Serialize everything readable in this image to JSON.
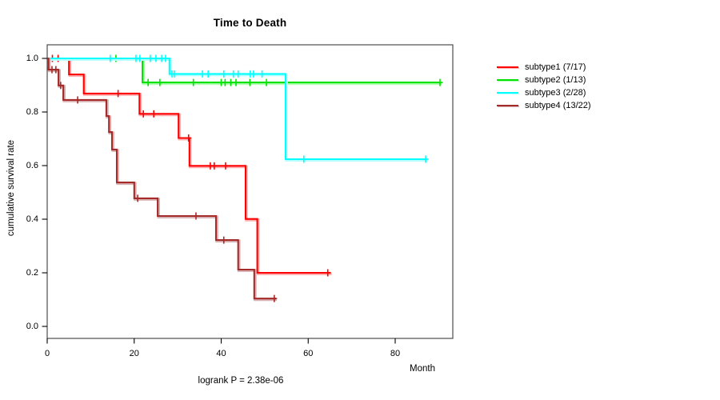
{
  "title": "Time to Death",
  "caption": "logrank P = 2.38e-06",
  "chart_data": {
    "type": "line",
    "chart_style": "kaplan-meier-step-survival",
    "title": "Time to Death",
    "xlabel": "Month",
    "ylabel": "cumulative survival rate",
    "xlim": [
      0,
      93
    ],
    "ylim": [
      0,
      1.0
    ],
    "grid": false,
    "legend_position": "right-outside",
    "x_ticks": [
      0,
      20,
      40,
      60,
      80
    ],
    "x_tick_labels": [
      "0",
      "20",
      "40",
      "60",
      "80"
    ],
    "y_ticks": [
      0.0,
      0.2,
      0.4,
      0.6,
      0.8,
      1.0
    ],
    "y_tick_labels": [
      "0.0",
      "0.2",
      "0.4",
      "0.6",
      "0.8",
      "1.0"
    ],
    "annotation": "logrank P = 2.38e-06",
    "series": [
      {
        "name": "subtype1 (7/17)",
        "color": "#ff0000",
        "halo": "#ffb0b0",
        "steps": [
          [
            0,
            1.0
          ],
          [
            5.0,
            0.94
          ],
          [
            8.4,
            0.869
          ],
          [
            21.2,
            0.793
          ],
          [
            30.2,
            0.703
          ],
          [
            32.7,
            0.599
          ],
          [
            45.6,
            0.401
          ],
          [
            48.3,
            0.2
          ]
        ],
        "end_month": 65.2,
        "censors": [
          [
            1.2,
            1.0
          ],
          [
            2.5,
            1.0
          ],
          [
            16.3,
            0.869
          ],
          [
            22.1,
            0.793
          ],
          [
            24.5,
            0.793
          ],
          [
            32.5,
            0.703
          ],
          [
            37.5,
            0.599
          ],
          [
            38.4,
            0.599
          ],
          [
            41.0,
            0.599
          ],
          [
            64.5,
            0.2
          ]
        ]
      },
      {
        "name": "subtype2 (1/13)",
        "color": "#00e100",
        "halo": "#b0ffb0",
        "steps": [
          [
            0,
            1.0
          ],
          [
            21.9,
            0.91
          ]
        ],
        "end_month": 90.5,
        "censors": [
          [
            15.8,
            1.0
          ],
          [
            23.2,
            0.91
          ],
          [
            25.9,
            0.91
          ],
          [
            33.6,
            0.91
          ],
          [
            40.0,
            0.91
          ],
          [
            40.9,
            0.91
          ],
          [
            42.2,
            0.91
          ],
          [
            43.4,
            0.91
          ],
          [
            46.6,
            0.91
          ],
          [
            50.4,
            0.91
          ],
          [
            90.3,
            0.91
          ]
        ]
      },
      {
        "name": "subtype3 (2/28)",
        "color": "#00ffff",
        "halo": "#b8ffff",
        "steps": [
          [
            0,
            1.0
          ],
          [
            28.1,
            0.942
          ],
          [
            54.8,
            0.624
          ]
        ],
        "end_month": 87.3,
        "censors": [
          [
            14.5,
            1.0
          ],
          [
            20.4,
            1.0
          ],
          [
            21.3,
            1.0
          ],
          [
            23.7,
            1.0
          ],
          [
            25.0,
            1.0
          ],
          [
            26.3,
            1.0
          ],
          [
            27.2,
            1.0
          ],
          [
            28.7,
            0.942
          ],
          [
            29.2,
            0.942
          ],
          [
            35.7,
            0.942
          ],
          [
            37.0,
            0.942
          ],
          [
            40.6,
            0.942
          ],
          [
            42.8,
            0.942
          ],
          [
            43.9,
            0.942
          ],
          [
            46.7,
            0.942
          ],
          [
            47.4,
            0.942
          ],
          [
            49.4,
            0.942
          ],
          [
            59.0,
            0.624
          ],
          [
            87.0,
            0.624
          ]
        ]
      },
      {
        "name": "subtype4 (13/22)",
        "color": "#a52a2a",
        "halo": "#d9b3b3",
        "steps": [
          [
            0,
            1.0
          ],
          [
            0.3,
            0.958
          ],
          [
            2.6,
            0.899
          ],
          [
            3.7,
            0.845
          ],
          [
            13.6,
            0.785
          ],
          [
            14.2,
            0.725
          ],
          [
            14.9,
            0.66
          ],
          [
            16.0,
            0.537
          ],
          [
            20.0,
            0.478
          ],
          [
            25.4,
            0.412
          ],
          [
            38.8,
            0.322
          ],
          [
            43.9,
            0.212
          ],
          [
            47.6,
            0.104
          ]
        ],
        "end_month": 52.6,
        "censors": [
          [
            1.1,
            0.958
          ],
          [
            2.0,
            0.958
          ],
          [
            3.1,
            0.899
          ],
          [
            7.0,
            0.845
          ],
          [
            20.8,
            0.478
          ],
          [
            34.2,
            0.412
          ],
          [
            40.6,
            0.322
          ],
          [
            52.2,
            0.104
          ]
        ]
      }
    ]
  }
}
